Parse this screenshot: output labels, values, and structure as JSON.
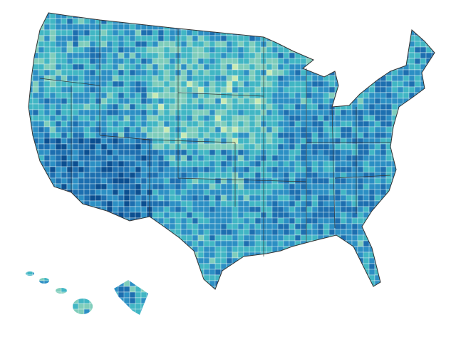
{
  "map": {
    "type": "choropleth",
    "palette": [
      "#c7e9b4",
      "#7fcdbb",
      "#41b6c4",
      "#2c8fc4",
      "#1d6fb0",
      "#0b4f91"
    ]
  }
}
